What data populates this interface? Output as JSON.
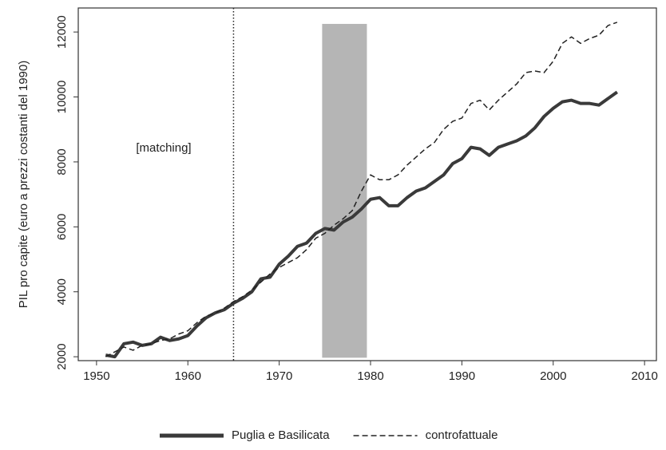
{
  "chart_data": {
    "type": "line",
    "ylabel": "PIL pro capite (euro a prezzi costanti del 1990)",
    "annotation": "[matching]",
    "x": [
      1951,
      1952,
      1953,
      1954,
      1955,
      1956,
      1957,
      1958,
      1959,
      1960,
      1961,
      1962,
      1963,
      1964,
      1965,
      1966,
      1967,
      1968,
      1969,
      1970,
      1971,
      1972,
      1973,
      1974,
      1975,
      1976,
      1977,
      1978,
      1979,
      1980,
      1981,
      1982,
      1983,
      1984,
      1985,
      1986,
      1987,
      1988,
      1989,
      1990,
      1991,
      1992,
      1993,
      1994,
      1995,
      1996,
      1997,
      1998,
      1999,
      2000,
      2001,
      2002,
      2003,
      2004,
      2005,
      2006,
      2007
    ],
    "series": [
      {
        "name": "Puglia e Basilicata",
        "color": "#3a3a3a",
        "dash": "solid",
        "values": [
          2050,
          2000,
          2400,
          2450,
          2350,
          2400,
          2600,
          2500,
          2550,
          2650,
          2950,
          3200,
          3350,
          3450,
          3650,
          3800,
          4000,
          4400,
          4450,
          4850,
          5100,
          5400,
          5500,
          5800,
          5950,
          5900,
          6150,
          6300,
          6550,
          6850,
          6900,
          6650,
          6650,
          6900,
          7100,
          7200,
          7400,
          7600,
          7950,
          8100,
          8450,
          8400,
          8200,
          8450,
          8550,
          8650,
          8800,
          9050,
          9400,
          9650,
          9850,
          9900,
          9800,
          9800,
          9750,
          9950,
          10150
        ]
      },
      {
        "name": "controfattuale",
        "color": "#222222",
        "dash": "dashed",
        "values": [
          2000,
          2150,
          2300,
          2200,
          2350,
          2400,
          2500,
          2550,
          2700,
          2800,
          3050,
          3250,
          3350,
          3500,
          3700,
          3850,
          4050,
          4300,
          4550,
          4750,
          4900,
          5050,
          5300,
          5650,
          5800,
          6050,
          6250,
          6500,
          7100,
          7600,
          7450,
          7450,
          7600,
          7900,
          8150,
          8400,
          8600,
          9000,
          9250,
          9350,
          9800,
          9900,
          9600,
          9900,
          10150,
          10400,
          10750,
          10800,
          10750,
          11100,
          11650,
          11850,
          11650,
          11800,
          11900,
          12200,
          12300
        ]
      }
    ],
    "xlim": [
      1948,
      2011.3
    ],
    "xticks": [
      1950,
      1960,
      1970,
      1980,
      1990,
      2000,
      2010
    ],
    "ylim": [
      1880,
      12740
    ],
    "yticks": [
      2000,
      4000,
      6000,
      8000,
      10000,
      12000
    ],
    "vline": 1965,
    "shaded_region": {
      "x": [
        1974.7,
        1979.6
      ],
      "y": [
        1970,
        12250
      ],
      "color": "#b5b5b5"
    },
    "legend": "bottom"
  }
}
